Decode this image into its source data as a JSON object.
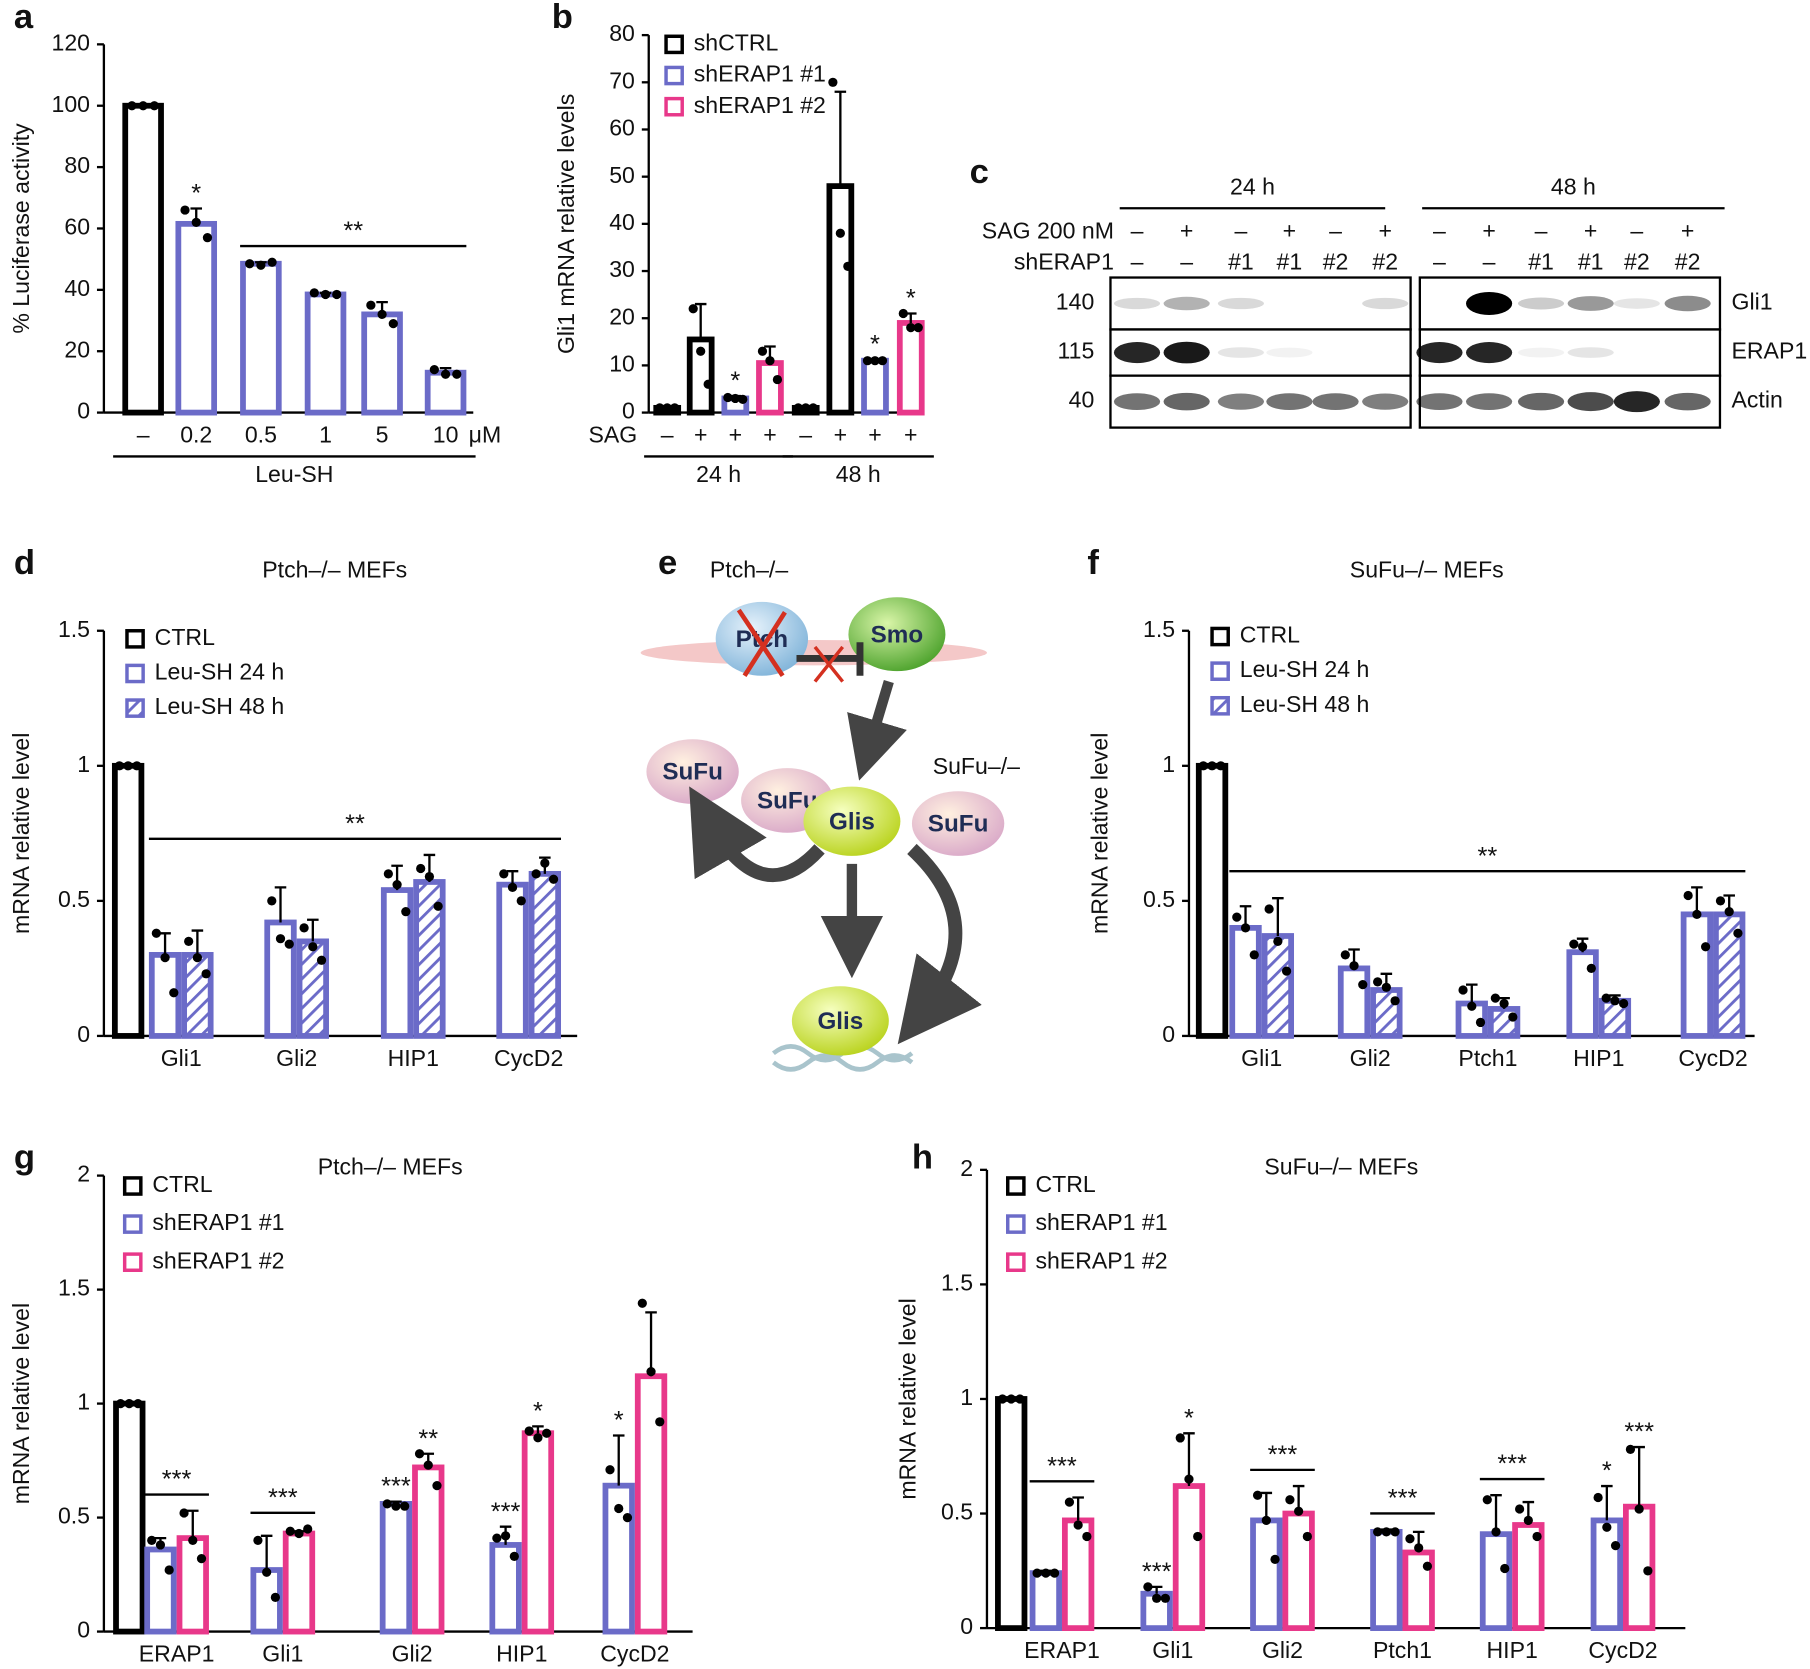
{
  "chart_data": [
    {
      "type": "bar",
      "label": "a",
      "y_label": "% Luciferase activity",
      "categories": [
        "–",
        "0.2",
        "0.5",
        "1",
        "5",
        "10"
      ],
      "x_unit": "μM",
      "groups": [
        {
          "label": "Leu-SH",
          "from": 0,
          "to": 5
        }
      ],
      "ylim": [
        0,
        120
      ],
      "yticks": [
        0,
        20,
        40,
        60,
        80,
        100,
        120
      ],
      "series": [
        {
          "color": "#000000",
          "values": [
            100,
            null,
            null,
            null,
            null,
            null
          ],
          "points": [
            [
              100,
              100,
              100
            ],
            null,
            null,
            null,
            null,
            null
          ]
        },
        {
          "color": "#6b6bc8",
          "values": [
            null,
            61.5,
            48.5,
            38.5,
            32,
            13
          ],
          "errors": [
            null,
            5,
            0.5,
            0.5,
            4,
            1.5
          ],
          "points": [
            null,
            [
              66,
              62,
              57
            ],
            [
              48.5,
              48,
              49
            ],
            [
              39,
              38.5,
              38.5
            ],
            [
              35,
              32,
              29
            ],
            [
              14,
              12.5,
              12.5
            ]
          ]
        }
      ],
      "annotations": [
        {
          "text": "*",
          "category": 1,
          "series": 1
        },
        {
          "text": "**",
          "from": 2,
          "to": 5
        }
      ]
    },
    {
      "type": "bar",
      "label": "b",
      "y_label": "Gli1 mRNA relative levels",
      "categories": [
        "–",
        "+",
        "+",
        "+",
        "–",
        "+",
        "+",
        "+"
      ],
      "x_row_label": "SAG",
      "groups": [
        {
          "label": "24 h",
          "from": 0,
          "to": 3
        },
        {
          "label": "48 h",
          "from": 4,
          "to": 7
        }
      ],
      "ylim": [
        0,
        80
      ],
      "yticks": [
        0,
        10,
        20,
        30,
        40,
        50,
        60,
        70,
        80
      ],
      "legend": "upper left",
      "series": [
        {
          "name": "shCTRL",
          "color": "#000000",
          "values": [
            1,
            15.5,
            null,
            null,
            1,
            48,
            null,
            null
          ],
          "errors": [
            null,
            7.5,
            null,
            null,
            null,
            20,
            null,
            null
          ],
          "points": [
            [
              1,
              1,
              1
            ],
            [
              22,
              13,
              6
            ],
            null,
            null,
            [
              1,
              1,
              1
            ],
            [
              70,
              38,
              31
            ],
            null,
            null
          ]
        },
        {
          "name": "shERAP1 #1",
          "color": "#6b6bc8",
          "values": [
            null,
            null,
            3,
            null,
            null,
            null,
            11,
            null
          ],
          "errors": [
            null,
            null,
            0.5,
            null,
            null,
            null,
            0.3,
            null
          ],
          "points": [
            null,
            null,
            [
              3.2,
              3,
              2.8
            ],
            null,
            null,
            null,
            [
              11,
              11,
              11
            ],
            null
          ]
        },
        {
          "name": "shERAP1 #2",
          "color": "#e8388a",
          "values": [
            null,
            null,
            null,
            10.5,
            null,
            null,
            null,
            19
          ],
          "errors": [
            null,
            null,
            null,
            3.5,
            null,
            null,
            null,
            2
          ],
          "points": [
            null,
            null,
            null,
            [
              13,
              11,
              7
            ],
            null,
            null,
            null,
            [
              21,
              18,
              18
            ]
          ]
        }
      ],
      "annotations": [
        {
          "text": "*",
          "category": 2,
          "series": 1
        },
        {
          "text": "*",
          "category": 6,
          "series": 1
        },
        {
          "text": "*",
          "category": 7,
          "series": 2
        }
      ]
    },
    {
      "type": "bar",
      "label": "d",
      "title": "Ptch–/– MEFs",
      "y_label": "mRNA relative level",
      "categories": [
        null,
        "Gli1",
        "Gli2",
        "HIP1",
        "CycD2"
      ],
      "ylim": [
        0,
        1.5
      ],
      "yticks": [
        0,
        0.5,
        1,
        1.5
      ],
      "legend": "upper left",
      "series": [
        {
          "name": "CTRL",
          "color": "#000000",
          "values": [
            1,
            null,
            null,
            null,
            null
          ],
          "points": [
            [
              1,
              1,
              1
            ],
            null,
            null,
            null,
            null
          ]
        },
        {
          "name": "Leu-SH 24 h",
          "color": "#6b6bc8",
          "values": [
            null,
            0.3,
            0.42,
            0.54,
            0.56
          ],
          "errors": [
            null,
            0.08,
            0.13,
            0.09,
            0.05
          ],
          "points": [
            null,
            [
              0.38,
              0.29,
              0.16
            ],
            [
              0.5,
              0.36,
              0.34
            ],
            [
              0.6,
              0.56,
              0.46
            ],
            [
              0.6,
              0.55,
              0.5
            ]
          ]
        },
        {
          "name": "Leu-SH 48 h",
          "color": "#6b6bc8",
          "hatch": true,
          "values": [
            null,
            0.3,
            0.35,
            0.57,
            0.6
          ],
          "errors": [
            null,
            0.09,
            0.08,
            0.1,
            0.06
          ],
          "points": [
            null,
            [
              0.35,
              0.29,
              0.23
            ],
            [
              0.4,
              0.33,
              0.28
            ],
            [
              0.62,
              0.59,
              0.48
            ],
            [
              0.6,
              0.64,
              0.58
            ]
          ]
        }
      ],
      "annotations": [
        {
          "text": "**",
          "from": 1,
          "to": 4
        }
      ]
    },
    {
      "type": "bar",
      "label": "f",
      "title": "SuFu–/– MEFs",
      "y_label": "mRNA relative level",
      "categories": [
        null,
        "Gli1",
        "Gli2",
        "Ptch1",
        "HIP1",
        "CycD2"
      ],
      "ylim": [
        0,
        1.5
      ],
      "yticks": [
        0,
        0.5,
        1,
        1.5
      ],
      "legend": "upper left",
      "series": [
        {
          "name": "CTRL",
          "color": "#000000",
          "values": [
            1,
            null,
            null,
            null,
            null,
            null
          ],
          "points": [
            [
              1,
              1,
              1
            ],
            null,
            null,
            null,
            null,
            null
          ]
        },
        {
          "name": "Leu-SH 24 h",
          "color": "#6b6bc8",
          "values": [
            null,
            0.4,
            0.25,
            0.12,
            0.31,
            0.45
          ],
          "errors": [
            null,
            0.08,
            0.07,
            0.07,
            0.05,
            0.1
          ],
          "points": [
            null,
            [
              0.44,
              0.4,
              0.3
            ],
            [
              0.3,
              0.26,
              0.19
            ],
            [
              0.17,
              0.11,
              0.05
            ],
            [
              0.34,
              0.33,
              0.25
            ],
            [
              0.52,
              0.45,
              0.33
            ]
          ]
        },
        {
          "name": "Leu-SH 48 h",
          "color": "#6b6bc8",
          "hatch": true,
          "values": [
            null,
            0.37,
            0.17,
            0.1,
            0.13,
            0.45
          ],
          "errors": [
            null,
            0.14,
            0.06,
            0.04,
            0.02,
            0.07
          ],
          "points": [
            null,
            [
              0.47,
              0.35,
              0.24
            ],
            [
              0.2,
              0.18,
              0.13
            ],
            [
              0.14,
              0.12,
              0.07
            ],
            [
              0.14,
              0.13,
              0.12
            ],
            [
              0.5,
              0.46,
              0.38
            ]
          ]
        }
      ],
      "annotations": [
        {
          "text": "**",
          "from": 1,
          "to": 5
        }
      ]
    },
    {
      "type": "bar",
      "label": "g",
      "title": "Ptch–/– MEFs",
      "y_label": "mRNA relative level",
      "categories": [
        null,
        "ERAP1",
        "Gli1",
        "Gli2",
        "HIP1",
        "CycD2"
      ],
      "ylim": [
        0,
        2
      ],
      "yticks": [
        0,
        0.5,
        1,
        1.5,
        2
      ],
      "legend": "upper left",
      "series": [
        {
          "name": "CTRL",
          "color": "#000000",
          "values": [
            1,
            null,
            null,
            null,
            null,
            null
          ],
          "points": [
            [
              1,
              1,
              1
            ],
            null,
            null,
            null,
            null,
            null
          ]
        },
        {
          "name": "shERAP1 #1",
          "color": "#6b6bc8",
          "values": [
            null,
            0.36,
            0.27,
            0.56,
            0.38,
            0.64
          ],
          "errors": [
            null,
            0.05,
            0.15,
            0.01,
            0.08,
            0.22
          ],
          "points": [
            null,
            [
              0.4,
              0.38,
              0.27
            ],
            [
              0.4,
              0.26,
              0.15
            ],
            [
              0.56,
              0.55,
              0.55
            ],
            [
              0.41,
              0.42,
              0.33
            ],
            [
              0.71,
              0.54,
              0.5
            ]
          ]
        },
        {
          "name": "shERAP1 #2",
          "color": "#e8388a",
          "values": [
            null,
            0.41,
            0.43,
            0.72,
            0.87,
            1.12
          ],
          "errors": [
            null,
            0.12,
            0.01,
            0.06,
            0.03,
            0.28
          ],
          "points": [
            null,
            [
              0.52,
              0.4,
              0.32
            ],
            [
              0.44,
              0.43,
              0.45
            ],
            [
              0.78,
              0.73,
              0.64
            ],
            [
              0.88,
              0.85,
              0.87
            ],
            [
              1.44,
              1.14,
              0.92
            ]
          ]
        }
      ],
      "annotations": [
        {
          "text": "***",
          "from": 1,
          "to": 1
        },
        {
          "text": "***",
          "from": 2,
          "to": 2
        },
        {
          "text": "***",
          "category": 3,
          "series": 1
        },
        {
          "text": "**",
          "category": 3,
          "series": 2
        },
        {
          "text": "***",
          "category": 4,
          "series": 1
        },
        {
          "text": "*",
          "category": 4,
          "series": 2
        },
        {
          "text": "*",
          "category": 5,
          "series": 1
        }
      ]
    },
    {
      "type": "bar",
      "label": "h",
      "title": "SuFu–/– MEFs",
      "y_label": "mRNA relative level",
      "categories": [
        null,
        "ERAP1",
        "Gli1",
        "Gli2",
        "Ptch1",
        "HIP1",
        "CycD2"
      ],
      "ylim": [
        0,
        2
      ],
      "yticks": [
        0,
        0.5,
        1,
        1.5,
        2
      ],
      "legend": "upper left",
      "series": [
        {
          "name": "CTRL",
          "color": "#000000",
          "values": [
            1,
            null,
            null,
            null,
            null,
            null,
            null
          ],
          "points": [
            [
              1,
              1,
              1
            ],
            null,
            null,
            null,
            null,
            null,
            null
          ]
        },
        {
          "name": "shERAP1 #1",
          "color": "#6b6bc8",
          "values": [
            null,
            0.24,
            0.15,
            0.47,
            0.42,
            0.41,
            0.47
          ],
          "errors": [
            null,
            0.01,
            0.03,
            0.12,
            0.01,
            0.17,
            0.15
          ],
          "points": [
            null,
            [
              0.24,
              0.24,
              0.24
            ],
            [
              0.18,
              0.13,
              0.13
            ],
            [
              0.58,
              0.47,
              0.3
            ],
            [
              0.42,
              0.42,
              0.42
            ],
            [
              0.56,
              0.42,
              0.26
            ],
            [
              0.57,
              0.44,
              0.36
            ]
          ]
        },
        {
          "name": "shERAP1 #2",
          "color": "#e8388a",
          "values": [
            null,
            0.47,
            0.62,
            0.5,
            0.33,
            0.45,
            0.53
          ],
          "errors": [
            null,
            0.1,
            0.23,
            0.12,
            0.09,
            0.1,
            0.26
          ],
          "points": [
            null,
            [
              0.55,
              0.45,
              0.4
            ],
            [
              0.83,
              0.65,
              0.4
            ],
            [
              0.56,
              0.51,
              0.4
            ],
            [
              0.39,
              0.35,
              0.27
            ],
            [
              0.52,
              0.47,
              0.4
            ],
            [
              0.78,
              0.52,
              0.25
            ]
          ]
        }
      ],
      "annotations": [
        {
          "text": "***",
          "from": 1,
          "to": 1
        },
        {
          "text": "***",
          "from": 3,
          "to": 3
        },
        {
          "text": "***",
          "from": 4,
          "to": 4
        },
        {
          "text": "***",
          "from": 5,
          "to": 5
        },
        {
          "text": "***",
          "category": 2,
          "series": 1
        },
        {
          "text": "*",
          "category": 2,
          "series": 2
        },
        {
          "text": "*",
          "category": 6,
          "series": 1
        },
        {
          "text": "***",
          "category": 6,
          "series": 2
        }
      ]
    }
  ],
  "blot": {
    "label": "c",
    "time_points": [
      "24 h",
      "48 h"
    ],
    "conditions": [
      {
        "label": "SAG 200 nM",
        "lanes": [
          "–",
          "+",
          "–",
          "+",
          "–",
          "+",
          "–",
          "+",
          "–",
          "+",
          "–",
          "+"
        ]
      },
      {
        "label": "shERAP1",
        "lanes": [
          "–",
          "–",
          "#1",
          "#1",
          "#2",
          "#2",
          "–",
          "–",
          "#1",
          "#1",
          "#2",
          "#2"
        ]
      }
    ],
    "bands": [
      {
        "weight": 140,
        "protein": "Gli1"
      },
      {
        "weight": 115,
        "protein": "ERAP1"
      },
      {
        "weight": 40,
        "protein": "Actin"
      }
    ]
  },
  "diagram": {
    "label": "e",
    "genotypes": [
      "Ptch–/–",
      "SuFu–/–"
    ],
    "nodes": [
      {
        "label": "Ptch"
      },
      {
        "label": "Smo"
      },
      {
        "label": "SuFu"
      },
      {
        "label": "SuFu"
      },
      {
        "label": "Glis"
      },
      {
        "label": "SuFu"
      },
      {
        "label": "Glis"
      }
    ]
  }
}
